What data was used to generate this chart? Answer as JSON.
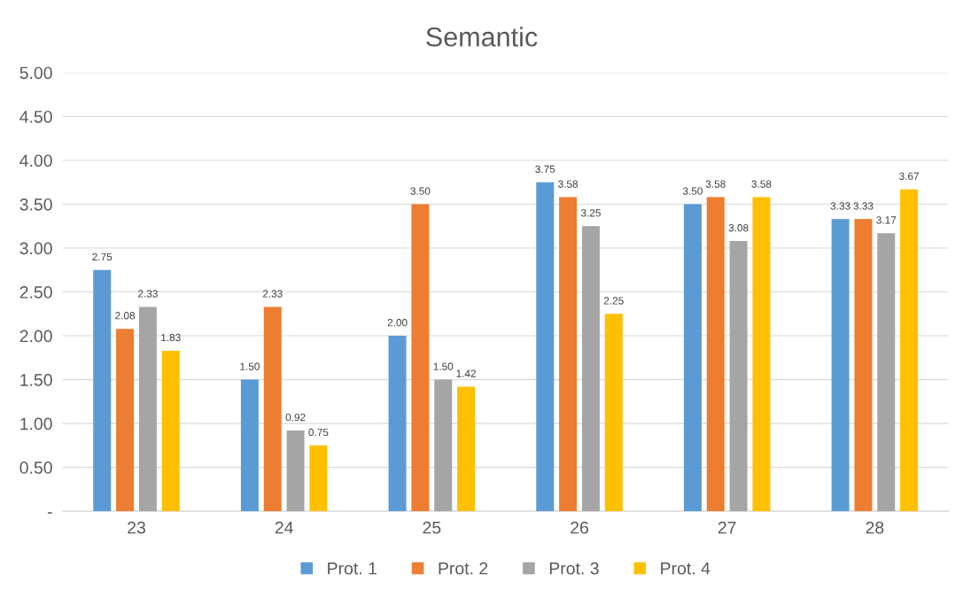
{
  "chart_data": {
    "type": "bar",
    "title": "Semantic",
    "categories": [
      "23",
      "24",
      "25",
      "26",
      "27",
      "28"
    ],
    "series": [
      {
        "name": "Prot. 1",
        "color": "#5b9bd5",
        "values": [
          2.75,
          1.5,
          2.0,
          3.75,
          3.5,
          3.33
        ],
        "value_labels": [
          "2.75",
          "1.50",
          "2.00",
          "3.75",
          "3.50",
          "3.33"
        ]
      },
      {
        "name": "Prot. 2",
        "color": "#ed7d31",
        "values": [
          2.08,
          2.33,
          3.5,
          3.58,
          3.58,
          3.33
        ],
        "value_labels": [
          "2.08",
          "2.33",
          "3.50",
          "3.58",
          "3.58",
          "3.33"
        ]
      },
      {
        "name": "Prot. 3",
        "color": "#a5a5a5",
        "values": [
          2.33,
          0.92,
          1.5,
          3.25,
          3.08,
          3.17
        ],
        "value_labels": [
          "2.33",
          "0.92",
          "1.50",
          "3.25",
          "3.08",
          "3.17"
        ]
      },
      {
        "name": "Prot. 4",
        "color": "#ffc000",
        "values": [
          1.83,
          0.75,
          1.42,
          2.25,
          3.58,
          3.67
        ],
        "value_labels": [
          "1.83",
          "0.75",
          "1.42",
          "2.25",
          "3.58",
          "3.67"
        ]
      }
    ],
    "ylim": [
      0,
      5
    ],
    "yticks": [
      {
        "value": 0,
        "label": "-"
      },
      {
        "value": 0.5,
        "label": "0.50"
      },
      {
        "value": 1,
        "label": "1.00"
      },
      {
        "value": 1.5,
        "label": "1.50"
      },
      {
        "value": 2,
        "label": "2.00"
      },
      {
        "value": 2.5,
        "label": "2.50"
      },
      {
        "value": 3,
        "label": "3.00"
      },
      {
        "value": 3.5,
        "label": "3.50"
      },
      {
        "value": 4,
        "label": "4.00"
      },
      {
        "value": 4.5,
        "label": "4.50"
      },
      {
        "value": 5,
        "label": "5.00"
      }
    ],
    "grid": "y",
    "legend": "bottom"
  }
}
